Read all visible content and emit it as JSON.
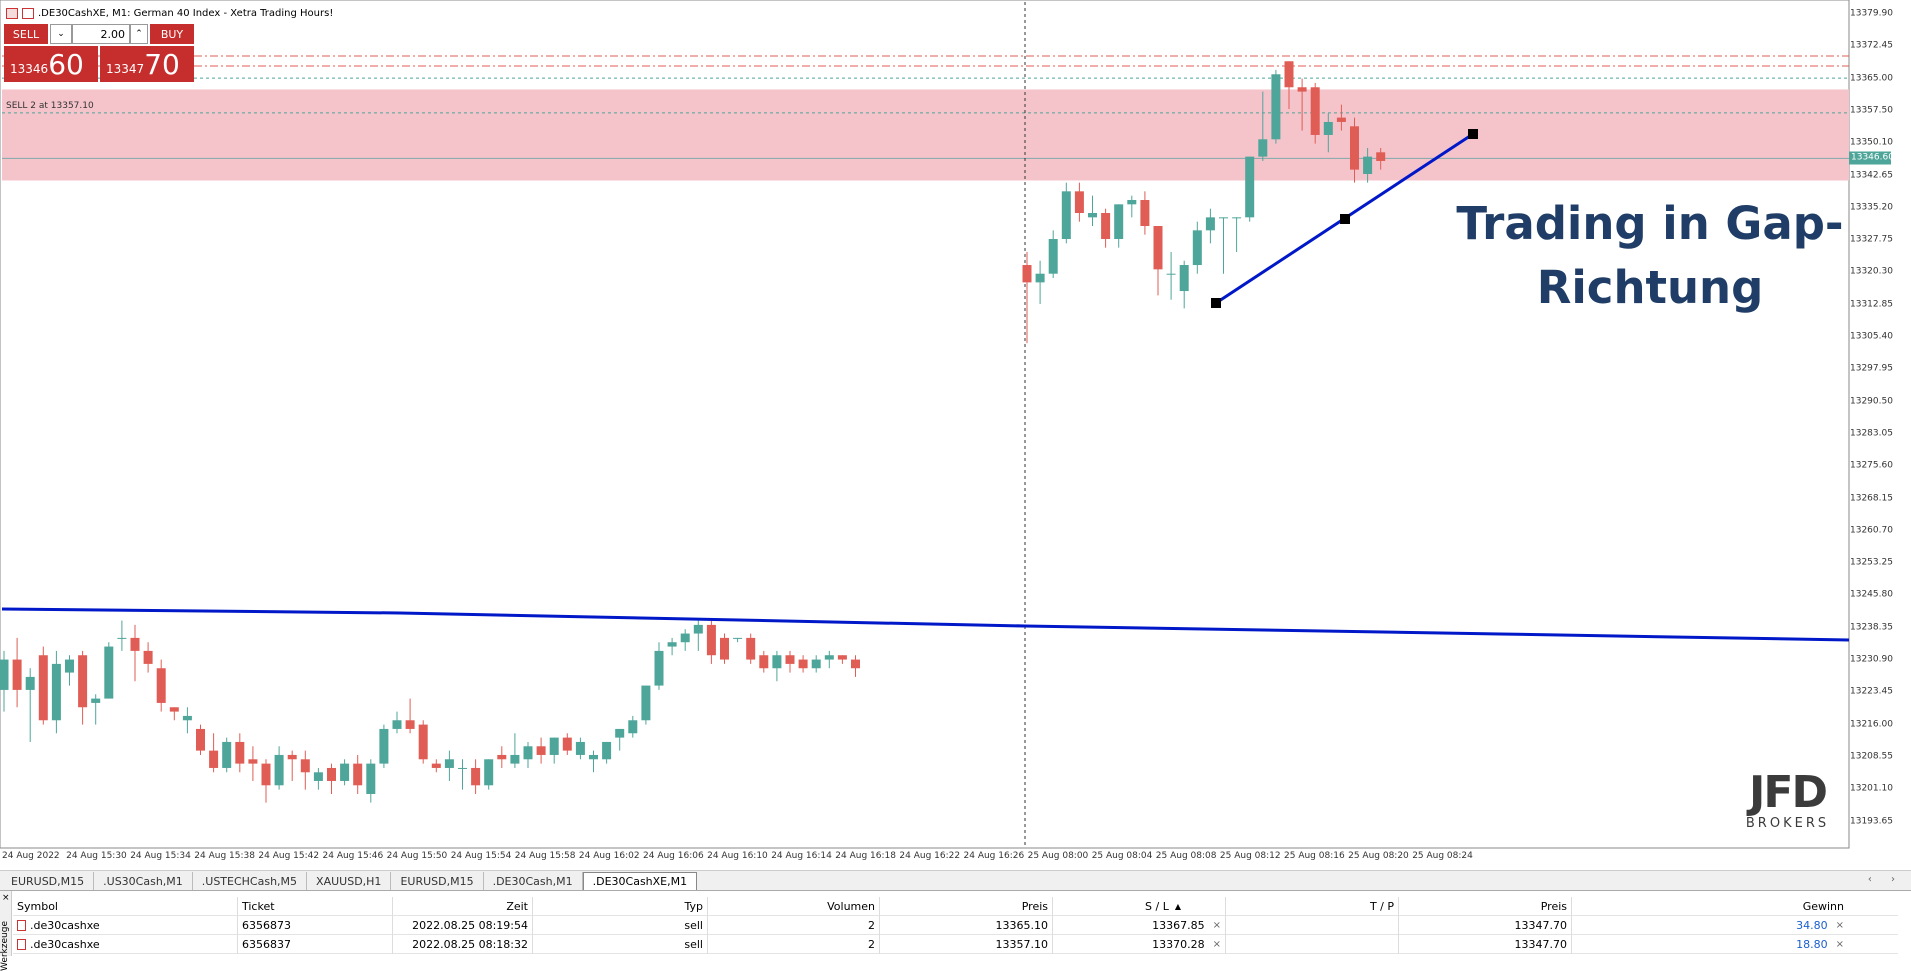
{
  "window": {
    "title": ".DE30CashXE, M1:  German 40 Index  - Xetra Trading Hours!"
  },
  "one_click": {
    "sell_label": "SELL",
    "buy_label": "BUY",
    "volume": "2.00",
    "sell_price_small": "13346",
    "sell_price_big": "60",
    "buy_price_small": "13347",
    "buy_price_big": "70",
    "dropdown_glyph": "⌄",
    "up_glyph": "⌃"
  },
  "order_line_label": "SELL 2 at 13357.10",
  "price_axis": [
    "13379.90",
    "13372.45",
    "13365.00",
    "13357.50",
    "13350.10",
    "13342.65",
    "13335.20",
    "13327.75",
    "13320.30",
    "13312.85",
    "13305.40",
    "13297.95",
    "13290.50",
    "13283.05",
    "13275.60",
    "13268.15",
    "13260.70",
    "13253.25",
    "13245.80",
    "13238.35",
    "13230.90",
    "13223.45",
    "13216.00",
    "13208.55",
    "13201.10",
    "13193.65"
  ],
  "current_price_label": "13346.60",
  "time_axis": [
    "24 Aug 2022",
    "24 Aug 15:30",
    "24 Aug 15:34",
    "24 Aug 15:38",
    "24 Aug 15:42",
    "24 Aug 15:46",
    "24 Aug 15:50",
    "24 Aug 15:54",
    "24 Aug 15:58",
    "24 Aug 16:02",
    "24 Aug 16:06",
    "24 Aug 16:10",
    "24 Aug 16:14",
    "24 Aug 16:18",
    "24 Aug 16:22",
    "24 Aug 16:26",
    "25 Aug 08:00",
    "25 Aug 08:04",
    "25 Aug 08:08",
    "25 Aug 08:12",
    "25 Aug 08:16",
    "25 Aug 08:20",
    "25 Aug 08:24"
  ],
  "overlay": {
    "line1": "Trading in Gap-",
    "line2": "Richtung"
  },
  "logo": {
    "main": "JFD",
    "sub": "BROKERS"
  },
  "colors": {
    "bull": "#4ea59a",
    "bear": "#e05d55",
    "zone": "#f5c4cb",
    "trendline": "#0018c8",
    "overlay_text": "#1f3d66"
  },
  "chart_data": {
    "type": "candlestick",
    "symbol": ".DE30CashXE",
    "timeframe": "M1",
    "ylim": [
      13190,
      13383
    ],
    "candles_day1": [
      {
        "o": 13224,
        "h": 13233,
        "l": 13219,
        "c": 13231
      },
      {
        "o": 13231,
        "h": 13236,
        "l": 13220,
        "c": 13224
      },
      {
        "o": 13224,
        "h": 13229,
        "l": 13212,
        "c": 13227
      },
      {
        "o": 13232,
        "h": 13234,
        "l": 13216,
        "c": 13217
      },
      {
        "o": 13217,
        "h": 13233,
        "l": 13214,
        "c": 13230
      },
      {
        "o": 13228,
        "h": 13232,
        "l": 13225,
        "c": 13231
      },
      {
        "o": 13232,
        "h": 13233,
        "l": 13216,
        "c": 13220
      },
      {
        "o": 13221,
        "h": 13223,
        "l": 13216,
        "c": 13222
      },
      {
        "o": 13222,
        "h": 13235,
        "l": 13222,
        "c": 13234
      },
      {
        "o": 13236,
        "h": 13240,
        "l": 13233,
        "c": 13236
      },
      {
        "o": 13236,
        "h": 13239,
        "l": 13226,
        "c": 13233
      },
      {
        "o": 13233,
        "h": 13235,
        "l": 13228,
        "c": 13230
      },
      {
        "o": 13229,
        "h": 13231,
        "l": 13219,
        "c": 13221
      },
      {
        "o": 13220,
        "h": 13220,
        "l": 13217,
        "c": 13219
      },
      {
        "o": 13217,
        "h": 13220,
        "l": 13214,
        "c": 13218
      },
      {
        "o": 13215,
        "h": 13216,
        "l": 13209,
        "c": 13210
      },
      {
        "o": 13210,
        "h": 13214,
        "l": 13205,
        "c": 13206
      },
      {
        "o": 13206,
        "h": 13213,
        "l": 13205,
        "c": 13212
      },
      {
        "o": 13212,
        "h": 13214,
        "l": 13205,
        "c": 13207
      },
      {
        "o": 13208,
        "h": 13211,
        "l": 13203,
        "c": 13207
      },
      {
        "o": 13207,
        "h": 13208,
        "l": 13198,
        "c": 13202
      },
      {
        "o": 13202,
        "h": 13211,
        "l": 13201,
        "c": 13209
      },
      {
        "o": 13209,
        "h": 13210,
        "l": 13203,
        "c": 13208
      },
      {
        "o": 13208,
        "h": 13210,
        "l": 13201,
        "c": 13205
      },
      {
        "o": 13203,
        "h": 13206,
        "l": 13201,
        "c": 13205
      },
      {
        "o": 13206,
        "h": 13207,
        "l": 13200,
        "c": 13203
      },
      {
        "o": 13203,
        "h": 13208,
        "l": 13202,
        "c": 13207
      },
      {
        "o": 13207,
        "h": 13209,
        "l": 13200,
        "c": 13202
      },
      {
        "o": 13200,
        "h": 13208,
        "l": 13198,
        "c": 13207
      },
      {
        "o": 13207,
        "h": 13216,
        "l": 13206,
        "c": 13215
      },
      {
        "o": 13215,
        "h": 13219,
        "l": 13214,
        "c": 13217
      },
      {
        "o": 13217,
        "h": 13222,
        "l": 13214,
        "c": 13215
      },
      {
        "o": 13216,
        "h": 13217,
        "l": 13207,
        "c": 13208
      },
      {
        "o": 13207,
        "h": 13208,
        "l": 13205,
        "c": 13206
      },
      {
        "o": 13206,
        "h": 13210,
        "l": 13203,
        "c": 13208
      },
      {
        "o": 13206,
        "h": 13208,
        "l": 13201,
        "c": 13206
      },
      {
        "o": 13206,
        "h": 13208,
        "l": 13200,
        "c": 13202
      },
      {
        "o": 13202,
        "h": 13208,
        "l": 13201,
        "c": 13208
      },
      {
        "o": 13209,
        "h": 13211,
        "l": 13206,
        "c": 13208
      },
      {
        "o": 13207,
        "h": 13214,
        "l": 13206,
        "c": 13209
      },
      {
        "o": 13208,
        "h": 13212,
        "l": 13206,
        "c": 13211
      },
      {
        "o": 13211,
        "h": 13213,
        "l": 13207,
        "c": 13209
      },
      {
        "o": 13209,
        "h": 13213,
        "l": 13207,
        "c": 13213
      },
      {
        "o": 13213,
        "h": 13214,
        "l": 13209,
        "c": 13210
      },
      {
        "o": 13209,
        "h": 13213,
        "l": 13208,
        "c": 13212
      },
      {
        "o": 13208,
        "h": 13210,
        "l": 13205,
        "c": 13209
      },
      {
        "o": 13208,
        "h": 13212,
        "l": 13207,
        "c": 13212
      },
      {
        "o": 13213,
        "h": 13215,
        "l": 13210,
        "c": 13215
      },
      {
        "o": 13214,
        "h": 13218,
        "l": 13213,
        "c": 13217
      },
      {
        "o": 13217,
        "h": 13225,
        "l": 13216,
        "c": 13225
      },
      {
        "o": 13225,
        "h": 13235,
        "l": 13224,
        "c": 13233
      },
      {
        "o": 13234,
        "h": 13236,
        "l": 13232,
        "c": 13235
      },
      {
        "o": 13235,
        "h": 13238,
        "l": 13233,
        "c": 13237
      },
      {
        "o": 13237,
        "h": 13240,
        "l": 13233,
        "c": 13239
      },
      {
        "o": 13239,
        "h": 13240,
        "l": 13230,
        "c": 13232
      },
      {
        "o": 13236,
        "h": 13237,
        "l": 13230,
        "c": 13231
      },
      {
        "o": 13236,
        "h": 13236,
        "l": 13235,
        "c": 13236
      },
      {
        "o": 13236,
        "h": 13237,
        "l": 13230,
        "c": 13231
      },
      {
        "o": 13232,
        "h": 13233,
        "l": 13228,
        "c": 13229
      },
      {
        "o": 13229,
        "h": 13233,
        "l": 13226,
        "c": 13232
      },
      {
        "o": 13232,
        "h": 13233,
        "l": 13228,
        "c": 13230
      },
      {
        "o": 13231,
        "h": 13232,
        "l": 13228,
        "c": 13229
      },
      {
        "o": 13229,
        "h": 13232,
        "l": 13228,
        "c": 13231
      },
      {
        "o": 13231,
        "h": 13233,
        "l": 13229,
        "c": 13232
      },
      {
        "o": 13232,
        "h": 13232,
        "l": 13230,
        "c": 13231
      },
      {
        "o": 13231,
        "h": 13232,
        "l": 13227,
        "c": 13229
      }
    ],
    "candles_day2": [
      {
        "o": 13322,
        "h": 13325,
        "l": 13304,
        "c": 13318
      },
      {
        "o": 13318,
        "h": 13323,
        "l": 13313,
        "c": 13320
      },
      {
        "o": 13320,
        "h": 13330,
        "l": 13319,
        "c": 13328
      },
      {
        "o": 13328,
        "h": 13341,
        "l": 13327,
        "c": 13339
      },
      {
        "o": 13339,
        "h": 13341,
        "l": 13332,
        "c": 13334
      },
      {
        "o": 13333,
        "h": 13338,
        "l": 13331,
        "c": 13334
      },
      {
        "o": 13334,
        "h": 13335,
        "l": 13326,
        "c": 13328
      },
      {
        "o": 13328,
        "h": 13336,
        "l": 13326,
        "c": 13336
      },
      {
        "o": 13336,
        "h": 13338,
        "l": 13333,
        "c": 13337
      },
      {
        "o": 13337,
        "h": 13339,
        "l": 13329,
        "c": 13331
      },
      {
        "o": 13331,
        "h": 13331,
        "l": 13315,
        "c": 13321
      },
      {
        "o": 13320,
        "h": 13325,
        "l": 13314,
        "c": 13320
      },
      {
        "o": 13316,
        "h": 13323,
        "l": 13312,
        "c": 13322
      },
      {
        "o": 13322,
        "h": 13332,
        "l": 13320,
        "c": 13330
      },
      {
        "o": 13330,
        "h": 13335,
        "l": 13327,
        "c": 13333
      },
      {
        "o": 13333,
        "h": 13333,
        "l": 13320,
        "c": 13333
      },
      {
        "o": 13333,
        "h": 13333,
        "l": 13325,
        "c": 13333
      },
      {
        "o": 13333,
        "h": 13347,
        "l": 13332,
        "c": 13347
      },
      {
        "o": 13347,
        "h": 13362,
        "l": 13346,
        "c": 13351
      },
      {
        "o": 13351,
        "h": 13367,
        "l": 13350,
        "c": 13366
      },
      {
        "o": 13369,
        "h": 13369,
        "l": 13358,
        "c": 13363
      },
      {
        "o": 13363,
        "h": 13365,
        "l": 13353,
        "c": 13362
      },
      {
        "o": 13363,
        "h": 13364,
        "l": 13350,
        "c": 13352
      },
      {
        "o": 13352,
        "h": 13357,
        "l": 13348,
        "c": 13355
      },
      {
        "o": 13356,
        "h": 13359,
        "l": 13353,
        "c": 13355
      },
      {
        "o": 13354,
        "h": 13356,
        "l": 13341,
        "c": 13344
      },
      {
        "o": 13343,
        "h": 13349,
        "l": 13341,
        "c": 13347
      },
      {
        "o": 13348,
        "h": 13349,
        "l": 13344,
        "c": 13346
      }
    ]
  },
  "chart_tabs": [
    "EURUSD,M15",
    ".US30Cash,M1",
    ".USTECHCash,M5",
    "XAUUSD,H1",
    "EURUSD,M15",
    ".DE30Cash,M1",
    ".DE30CashXE,M1"
  ],
  "tabs_arrows": "‹ ›",
  "positions_table": {
    "headers": {
      "symbol": "Symbol",
      "ticket": "Ticket",
      "zeit": "Zeit",
      "typ": "Typ",
      "volumen": "Volumen",
      "preis": "Preis",
      "sl": "S / L",
      "sort": "▲",
      "tp": "T / P",
      "preis2": "Preis",
      "gewinn": "Gewinn"
    },
    "rows": [
      {
        "symbol": ".de30cashxe",
        "ticket": "6356873",
        "zeit": "2022.08.25 08:19:54",
        "typ": "sell",
        "volumen": "2",
        "preis": "13365.10",
        "sl": "13367.85",
        "tp": "",
        "preis2": "13347.70",
        "gewinn": "34.80"
      },
      {
        "symbol": ".de30cashxe",
        "ticket": "6356837",
        "zeit": "2022.08.25 08:18:32",
        "typ": "sell",
        "volumen": "2",
        "preis": "13357.10",
        "sl": "13370.28",
        "tp": "",
        "preis2": "13347.70",
        "gewinn": "18.80"
      }
    ],
    "close_glyph": "×",
    "side_close": "×",
    "side_label": "Werkzeuge"
  }
}
